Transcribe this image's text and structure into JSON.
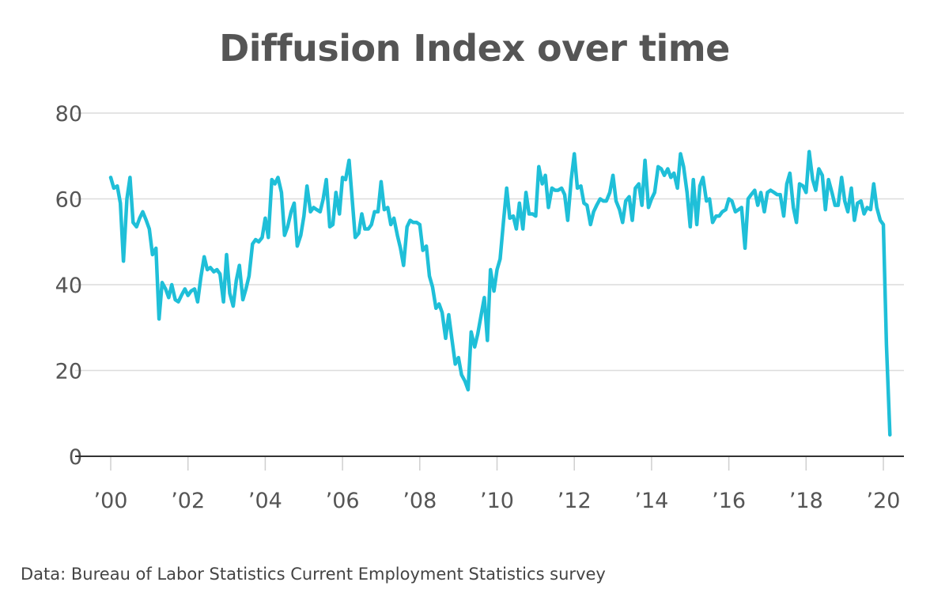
{
  "chart_data": {
    "type": "line",
    "title": "Diffusion Index over time",
    "source": "Data: Bureau of Labor Statistics Current Employment Statistics survey",
    "xlabel": "",
    "ylabel": "",
    "ylim": [
      0,
      80
    ],
    "yticks": [
      0,
      20,
      40,
      60,
      80
    ],
    "ytick_labels": [
      "0",
      "20",
      "40",
      "60",
      "80"
    ],
    "xlim": [
      2000,
      2020.2
    ],
    "xticks": [
      2000,
      2002,
      2004,
      2006,
      2008,
      2010,
      2012,
      2014,
      2016,
      2018,
      2020
    ],
    "xtick_labels": [
      "’00",
      "’02",
      "’04",
      "’06",
      "’08",
      "’10",
      "’12",
      "’14",
      "’16",
      "’18",
      "’20"
    ],
    "grid": "horizontal",
    "line_color": "#1fbfd8",
    "series": [
      {
        "x": [
          2000.0,
          2000.08,
          2000.17,
          2000.25,
          2000.33,
          2000.42,
          2000.5,
          2000.58,
          2000.67,
          2000.75,
          2000.83,
          2000.92,
          2001.0,
          2001.08,
          2001.17,
          2001.25,
          2001.33,
          2001.42,
          2001.5,
          2001.58,
          2001.67,
          2001.75,
          2001.83,
          2001.92,
          2002.0,
          2002.08,
          2002.17,
          2002.25,
          2002.33,
          2002.42,
          2002.5,
          2002.58,
          2002.67,
          2002.75,
          2002.83,
          2002.92,
          2003.0,
          2003.08,
          2003.17,
          2003.25,
          2003.33,
          2003.42,
          2003.5,
          2003.58,
          2003.67,
          2003.75,
          2003.83,
          2003.92,
          2004.0,
          2004.08,
          2004.17,
          2004.25,
          2004.33,
          2004.42,
          2004.5,
          2004.58,
          2004.67,
          2004.75,
          2004.83,
          2004.92,
          2005.0,
          2005.08,
          2005.17,
          2005.25,
          2005.33,
          2005.42,
          2005.5,
          2005.58,
          2005.67,
          2005.75,
          2005.83,
          2005.92,
          2006.0,
          2006.08,
          2006.17,
          2006.25,
          2006.33,
          2006.42,
          2006.5,
          2006.58,
          2006.67,
          2006.75,
          2006.83,
          2006.92,
          2007.0,
          2007.08,
          2007.17,
          2007.25,
          2007.33,
          2007.42,
          2007.5,
          2007.58,
          2007.67,
          2007.75,
          2007.83,
          2007.92,
          2008.0,
          2008.08,
          2008.17,
          2008.25,
          2008.33,
          2008.42,
          2008.5,
          2008.58,
          2008.67,
          2008.75,
          2008.83,
          2008.92,
          2009.0,
          2009.08,
          2009.17,
          2009.25,
          2009.33,
          2009.42,
          2009.5,
          2009.58,
          2009.67,
          2009.75,
          2009.83,
          2009.92,
          2010.0,
          2010.08,
          2010.17,
          2010.25,
          2010.33,
          2010.42,
          2010.5,
          2010.58,
          2010.67,
          2010.75,
          2010.83,
          2010.92,
          2011.0,
          2011.08,
          2011.17,
          2011.25,
          2011.33,
          2011.42,
          2011.5,
          2011.58,
          2011.67,
          2011.75,
          2011.83,
          2011.92,
          2012.0,
          2012.08,
          2012.17,
          2012.25,
          2012.33,
          2012.42,
          2012.5,
          2012.58,
          2012.67,
          2012.75,
          2012.83,
          2012.92,
          2013.0,
          2013.08,
          2013.17,
          2013.25,
          2013.33,
          2013.42,
          2013.5,
          2013.58,
          2013.67,
          2013.75,
          2013.83,
          2013.92,
          2014.0,
          2014.08,
          2014.17,
          2014.25,
          2014.33,
          2014.42,
          2014.5,
          2014.58,
          2014.67,
          2014.75,
          2014.83,
          2014.92,
          2015.0,
          2015.08,
          2015.17,
          2015.25,
          2015.33,
          2015.42,
          2015.5,
          2015.58,
          2015.67,
          2015.75,
          2015.83,
          2015.92,
          2016.0,
          2016.08,
          2016.17,
          2016.25,
          2016.33,
          2016.42,
          2016.5,
          2016.58,
          2016.67,
          2016.75,
          2016.83,
          2016.92,
          2017.0,
          2017.08,
          2017.17,
          2017.25,
          2017.33,
          2017.42,
          2017.5,
          2017.58,
          2017.67,
          2017.75,
          2017.83,
          2017.92,
          2018.0,
          2018.08,
          2018.17,
          2018.25,
          2018.33,
          2018.42,
          2018.5,
          2018.58,
          2018.67,
          2018.75,
          2018.83,
          2018.92,
          2019.0,
          2019.08,
          2019.17,
          2019.25,
          2019.33,
          2019.42,
          2019.5,
          2019.58,
          2019.67,
          2019.75,
          2019.83,
          2019.92,
          2020.0,
          2020.08,
          2020.17
        ],
        "y": [
          65,
          62.5,
          63,
          59,
          45.5,
          60,
          65,
          54.5,
          53.5,
          55.5,
          57,
          55,
          53,
          47,
          48.5,
          32,
          40.5,
          39,
          37,
          40,
          36.5,
          36,
          37.5,
          39,
          37.5,
          38.5,
          39,
          36,
          41.5,
          46.5,
          43.5,
          44,
          43,
          43.5,
          42.5,
          36,
          47,
          38,
          35,
          41,
          44.5,
          36.5,
          39,
          42,
          49.5,
          50.5,
          50,
          51,
          55.5,
          51,
          64.5,
          63.5,
          65,
          61.5,
          51.5,
          53.5,
          57,
          59,
          49,
          51.5,
          56,
          63,
          57,
          58,
          57.5,
          57,
          60,
          64.5,
          53.5,
          54,
          61.5,
          56.5,
          65,
          64.5,
          69,
          60,
          51,
          52,
          56.5,
          53,
          53,
          54,
          57,
          57,
          64,
          57.5,
          58,
          54,
          55.5,
          51.5,
          48.5,
          44.5,
          53.5,
          55,
          54.5,
          54.5,
          54,
          48,
          49,
          42,
          39.5,
          34.5,
          35.5,
          33.5,
          27.5,
          33,
          27.5,
          21.5,
          23,
          19,
          17.5,
          15.5,
          29,
          25.5,
          28.5,
          32.5,
          37,
          27,
          43.5,
          38.5,
          43.5,
          46,
          55,
          62.5,
          55.5,
          56,
          53,
          59,
          53,
          61.5,
          56.5,
          56.5,
          56,
          67.5,
          63.5,
          65.5,
          58,
          62.5,
          62,
          62,
          62.5,
          61,
          55,
          64.5,
          70.5,
          62.5,
          63,
          59,
          58.5,
          54,
          57,
          58.5,
          60,
          59.5,
          59.5,
          61.5,
          65.5,
          59.5,
          57.5,
          54.5,
          59.5,
          60.5,
          55,
          62.5,
          63.5,
          58.5,
          69,
          58,
          60,
          61.5,
          67.5,
          67,
          65.5,
          67,
          65,
          66,
          62.5,
          70.5,
          67.5,
          61.5,
          53.5,
          64.5,
          54,
          63,
          65,
          59.5,
          60,
          54.5,
          56,
          56,
          57,
          57.5,
          60,
          59.5,
          57,
          57.5,
          58,
          48.5,
          60,
          61,
          62,
          58.5,
          61.5,
          57,
          61.5,
          62,
          61.5,
          61,
          61,
          56,
          63.5,
          66,
          58,
          54.5,
          63.5,
          63,
          61.5,
          71,
          64.5,
          62,
          67,
          65.5,
          57.5,
          64.5,
          61.5,
          58.5,
          58.5,
          65,
          59.5,
          57,
          62.5,
          55,
          59,
          59.5,
          56.5,
          58,
          57.5,
          63.5,
          58,
          55,
          54,
          26,
          5
        ]
      }
    ]
  }
}
